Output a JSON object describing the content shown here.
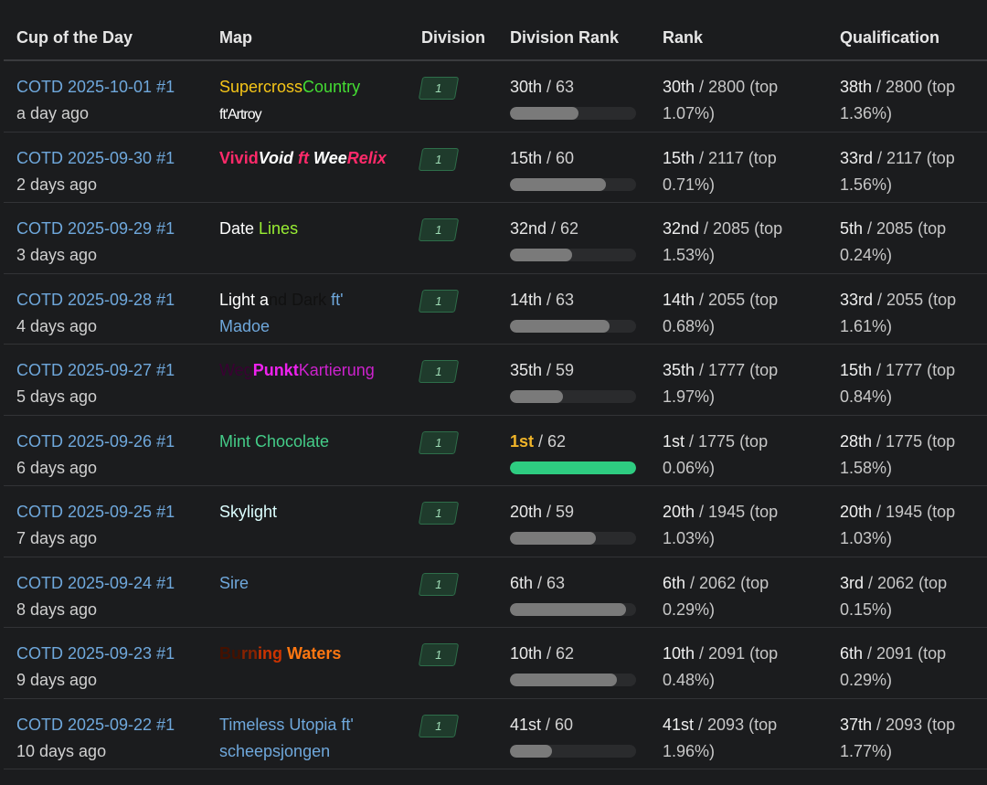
{
  "headers": {
    "cup": "Cup of the Day",
    "map": "Map",
    "division": "Division",
    "division_rank": "Division Rank",
    "rank": "Rank",
    "qualification": "Qualification"
  },
  "rows": [
    {
      "cotd": "COTD 2025-10-01 #1",
      "ago": "a day ago",
      "map": [
        {
          "t": "Supercross",
          "c": "#f5c518"
        },
        {
          "t": "Country",
          "c": "#44dd33"
        }
      ],
      "map2": [
        {
          "t": "ft'Artroy",
          "c": "#ffffff"
        }
      ],
      "division": "1",
      "drank_pos": "30th",
      "drank_total": " / 63",
      "drank_fraction": 0.54,
      "rank_pos": "30th",
      "rank_rest": " / 2800 (top",
      "rank_pct": "1.07%)",
      "qual_pos": "38th",
      "qual_rest": " / 2800 (top",
      "qual_pct": "1.36%)"
    },
    {
      "cotd": "COTD 2025-09-30 #1",
      "ago": "2 days ago",
      "map": [
        {
          "t": "Vivid",
          "c": "#ff2a6a",
          "b": true,
          "i": false
        },
        {
          "t": "Void ",
          "c": "#ffffff",
          "b": true,
          "i": true
        },
        {
          "t": "ft ",
          "c": "#ff2a6a",
          "b": true,
          "i": true
        },
        {
          "t": "Wee",
          "c": "#ffffff",
          "b": true,
          "i": true
        },
        {
          "t": "Relix",
          "c": "#ff2a6a",
          "b": true,
          "i": true
        }
      ],
      "map2": [],
      "division": "1",
      "drank_pos": "15th",
      "drank_total": " / 60",
      "drank_fraction": 0.76,
      "rank_pos": "15th",
      "rank_rest": " / 2117 (top",
      "rank_pct": "0.71%)",
      "qual_pos": "33rd",
      "qual_rest": " / 2117 (top",
      "qual_pct": "1.56%)"
    },
    {
      "cotd": "COTD 2025-09-29 #1",
      "ago": "3 days ago",
      "map": [
        {
          "t": "Date ",
          "c": "#ffffff"
        },
        {
          "t": "Lines",
          "c": "#99ee33"
        }
      ],
      "map2": [],
      "division": "1",
      "drank_pos": "32nd",
      "drank_total": " / 62",
      "drank_fraction": 0.49,
      "rank_pos": "32nd",
      "rank_rest": " / 2085 (top",
      "rank_pct": "1.53%)",
      "qual_pos": "5th",
      "qual_rest": " / 2085 (top",
      "qual_pct": "0.24%)"
    },
    {
      "cotd": "COTD 2025-09-28 #1",
      "ago": "4 days ago",
      "map": [
        {
          "t": "Light a",
          "c": "#ffffff"
        },
        {
          "t": "nd Dark",
          "c": "#111111"
        },
        {
          "t": " ft'",
          "c": "#6fa8dc"
        }
      ],
      "map2": [
        {
          "t": "Madoe",
          "c": "#6fa8dc"
        }
      ],
      "division": "1",
      "drank_pos": "14th",
      "drank_total": " / 63",
      "drank_fraction": 0.79,
      "rank_pos": "14th",
      "rank_rest": " / 2055 (top",
      "rank_pct": "0.68%)",
      "qual_pos": "33rd",
      "qual_rest": " / 2055 (top",
      "qual_pct": "1.61%)"
    },
    {
      "cotd": "COTD 2025-09-27 #1",
      "ago": "5 days ago",
      "map": [
        {
          "t": "Weg",
          "c": "#3a0033"
        },
        {
          "t": "Punkt",
          "c": "#ee22ee",
          "b": true
        },
        {
          "t": "Kartierung",
          "c": "#cc22cc"
        }
      ],
      "map2": [],
      "division": "1",
      "drank_pos": "35th",
      "drank_total": " / 59",
      "drank_fraction": 0.42,
      "rank_pos": "35th",
      "rank_rest": " / 1777 (top",
      "rank_pct": "1.97%)",
      "qual_pos": "15th",
      "qual_rest": " / 1777 (top",
      "qual_pct": "0.84%)"
    },
    {
      "cotd": "COTD 2025-09-26 #1",
      "ago": "6 days ago",
      "map": [
        {
          "t": "Mint Chocolate",
          "c": "#44cc88"
        }
      ],
      "map2": [],
      "division": "1",
      "drank_pos": "1st",
      "drank_total": " / 62",
      "drank_fraction": 1.0,
      "winner": true,
      "rank_pos": "1st",
      "rank_rest": " / 1775 (top",
      "rank_pct": "0.06%)",
      "qual_pos": "28th",
      "qual_rest": " / 1775 (top",
      "qual_pct": "1.58%)"
    },
    {
      "cotd": "COTD 2025-09-25 #1",
      "ago": "7 days ago",
      "map": [
        {
          "t": "Skylight",
          "c": "#ddffff"
        }
      ],
      "map2": [],
      "division": "1",
      "drank_pos": "20th",
      "drank_total": " / 59",
      "drank_fraction": 0.68,
      "rank_pos": "20th",
      "rank_rest": " / 1945 (top",
      "rank_pct": "1.03%)",
      "qual_pos": "20th",
      "qual_rest": " / 1945 (top",
      "qual_pct": "1.03%)"
    },
    {
      "cotd": "COTD 2025-09-24 #1",
      "ago": "8 days ago",
      "map": [
        {
          "t": "Sire",
          "c": "#6fa8dc"
        }
      ],
      "map2": [],
      "division": "1",
      "drank_pos": "6th",
      "drank_total": " / 63",
      "drank_fraction": 0.92,
      "rank_pos": "6th",
      "rank_rest": " / 2062 (top",
      "rank_pct": "0.29%)",
      "qual_pos": "3rd",
      "qual_rest": " / 2062 (top",
      "qual_pct": "0.15%)"
    },
    {
      "cotd": "COTD 2025-09-23 #1",
      "ago": "9 days ago",
      "map": [
        {
          "t": "Bu",
          "c": "#441100",
          "b": true
        },
        {
          "t": "rn",
          "c": "#882200",
          "b": true
        },
        {
          "t": "ing ",
          "c": "#cc3300",
          "b": true
        },
        {
          "t": "Waters",
          "c": "#ff7711",
          "b": true
        }
      ],
      "map2": [],
      "division": "1",
      "drank_pos": "10th",
      "drank_total": " / 62",
      "drank_fraction": 0.85,
      "rank_pos": "10th",
      "rank_rest": " / 2091 (top",
      "rank_pct": "0.48%)",
      "qual_pos": "6th",
      "qual_rest": " / 2091 (top",
      "qual_pct": "0.29%)"
    },
    {
      "cotd": "COTD 2025-09-22 #1",
      "ago": "10 days ago",
      "map": [
        {
          "t": "Timeless Utopia ft'",
          "c": "#6fa8dc"
        }
      ],
      "map2": [
        {
          "t": "scheepsjongen",
          "c": "#6fa8dc"
        }
      ],
      "division": "1",
      "drank_pos": "41st",
      "drank_total": " / 60",
      "drank_fraction": 0.33,
      "rank_pos": "41st",
      "rank_rest": " / 2093 (top",
      "rank_pct": "1.96%)",
      "qual_pos": "37th",
      "qual_rest": " / 2093 (top",
      "qual_pct": "1.77%)"
    }
  ]
}
